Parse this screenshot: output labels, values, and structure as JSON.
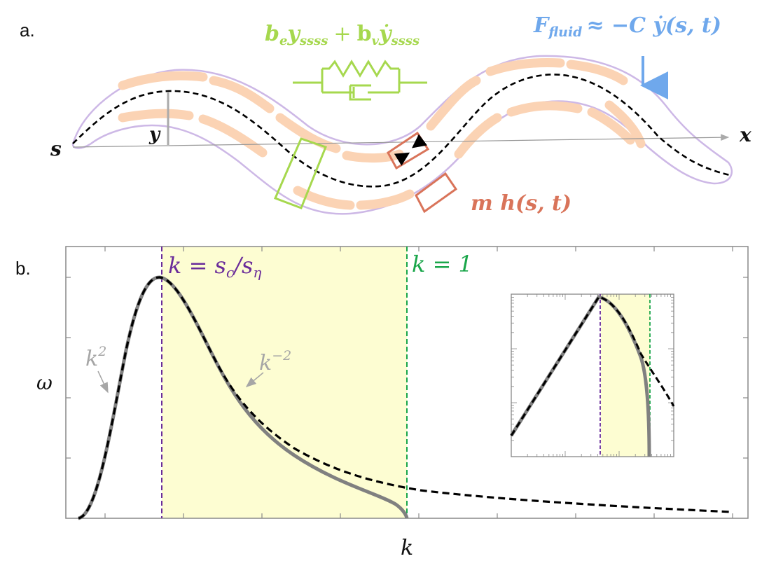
{
  "panel_a": {
    "label": "a.",
    "arc_start_label": "s",
    "x_axis_label": "x",
    "y_label": "y",
    "elastic_term": "b",
    "elastic_sub": "e",
    "elastic_y": "y",
    "elastic_y_sub": "ssss",
    "plus": "+",
    "viscous_term": "b",
    "viscous_sub": "v",
    "viscous_y": "ẏ",
    "viscous_y_sub": "ssss",
    "fluid_force_F": "F",
    "fluid_force_sub": "fluid",
    "fluid_force_rhs": "≈  −C ẏ(s, t)",
    "muscle_term": "m h(s, t)",
    "colors": {
      "body_outline": "#cdb8e6",
      "muscle": "#fbd3b4",
      "midline": "#000000",
      "elastic_viscous": "#a6d84e",
      "fluid": "#6fa8ec",
      "muscle_box": "#d9745a",
      "y_bar": "#aaaaaa"
    }
  },
  "panel_b": {
    "label": "b.",
    "y_axis_label": "ω",
    "x_axis_label": "k",
    "peak_line_label": "k = s_c / s_η",
    "peak_line_k": "k = ",
    "peak_line_s1": "s",
    "peak_line_s1_sub": "c",
    "peak_line_slash": "/",
    "peak_line_s2": "s",
    "peak_line_s2_sub": "η",
    "unity_line_label": "k = 1",
    "low_k_scaling": "k",
    "low_k_exponent": "2",
    "high_k_scaling": "k",
    "high_k_exponent": "−2",
    "colors": {
      "peak_line": "#6a2c9a",
      "unity_line": "#1aa64a",
      "shade": "#fdfdd2",
      "solid_curve": "#808080",
      "dashed_curve": "#000000",
      "annotation": "#a6a6a6"
    }
  },
  "chart_data": {
    "type": "line",
    "xlabel": "k",
    "ylabel": "ω",
    "series": [
      {
        "style": "solid-gray",
        "x": [
          0.05,
          0.1,
          0.15,
          0.2,
          0.25,
          0.3,
          0.4,
          0.5,
          0.6,
          0.7,
          0.8,
          0.9,
          0.95,
          1.0
        ],
        "values": [
          0.1,
          0.35,
          0.7,
          1.0,
          0.8,
          0.62,
          0.4,
          0.27,
          0.2,
          0.15,
          0.1,
          0.06,
          0.035,
          0.0
        ]
      },
      {
        "style": "dashed-black",
        "x": [
          0.05,
          0.1,
          0.15,
          0.2,
          0.25,
          0.3,
          0.4,
          0.5,
          0.6,
          0.7,
          0.8,
          0.9,
          1.0,
          1.2,
          1.4,
          1.6,
          1.8,
          2.0
        ],
        "values": [
          0.1,
          0.35,
          0.7,
          1.0,
          0.8,
          0.62,
          0.4,
          0.28,
          0.22,
          0.18,
          0.15,
          0.13,
          0.12,
          0.1,
          0.08,
          0.07,
          0.06,
          0.05
        ]
      }
    ],
    "annotations": [
      "k = s_c/s_η",
      "k = 1",
      "k^2",
      "k^-2"
    ],
    "inset": {
      "scale": "log-log",
      "lines": [
        "k = s_c/s_η",
        "k = 1"
      ]
    }
  }
}
